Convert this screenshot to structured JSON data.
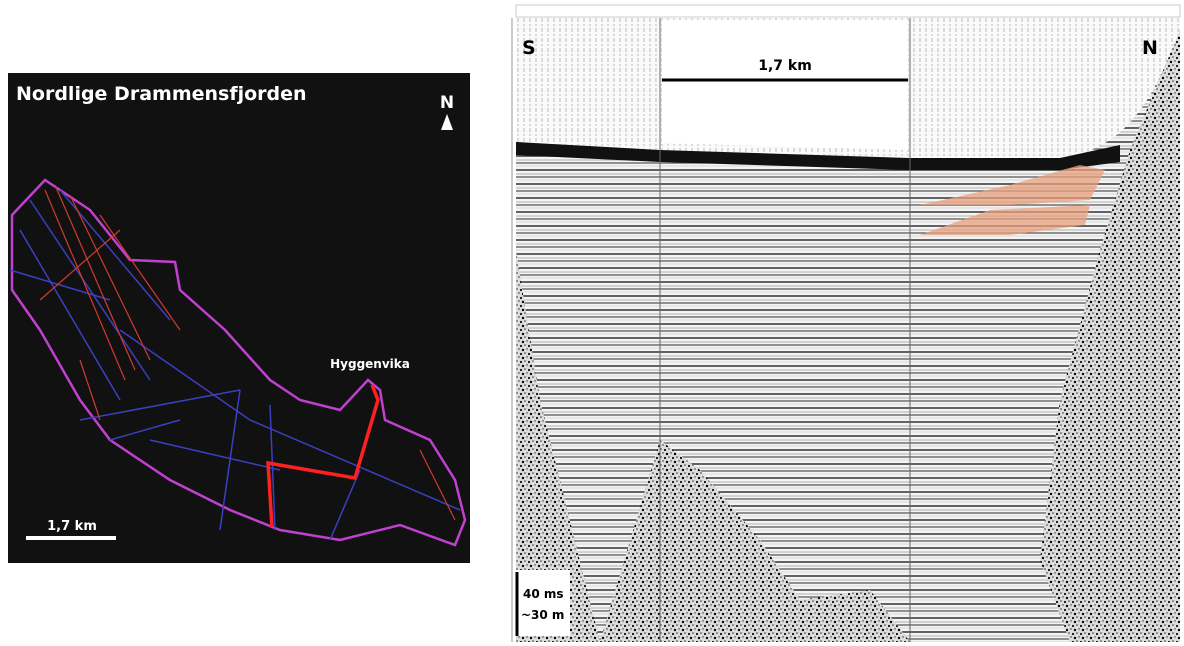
{
  "map": {
    "title": "Nordlige Drammensfjorden",
    "north": "N",
    "place": "Hyggenvika",
    "scale": "1,7 km"
  },
  "profile": {
    "left": "S",
    "right": "N",
    "scale": "1,7 km",
    "time_scale": [
      "40 ms",
      "~30 m"
    ]
  }
}
